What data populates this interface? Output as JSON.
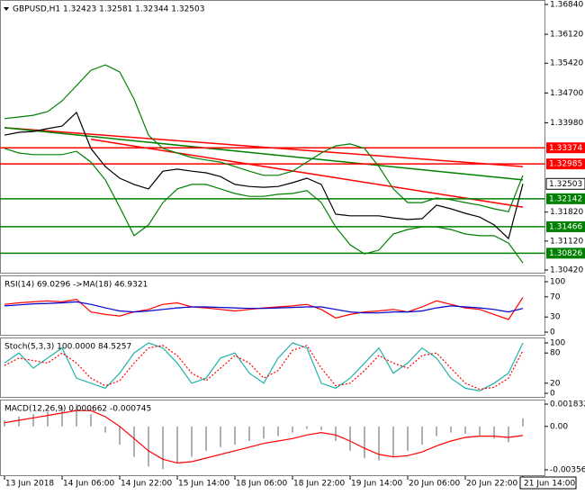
{
  "chart_data": [
    {
      "type": "line",
      "title": "GBPUSD,H1  1.32423 1.32581 1.32344 1.32503",
      "categories": [
        "13 Jun 2018",
        null,
        null,
        null,
        "14 Jun 06:00",
        null,
        null,
        null,
        "14 Jun 22:00",
        null,
        null,
        null,
        "15 Jun 14:00",
        null,
        null,
        null,
        "18 Jun 06:00",
        null,
        null,
        null,
        "18 Jun 22:00",
        null,
        null,
        null,
        "19 Jun 14:00",
        null,
        null,
        null,
        "20 Jun 06:00",
        null,
        null,
        null,
        "20 Jun 22:00",
        null,
        null,
        null,
        "21 Jun 14:00"
      ],
      "ylim": [
        1.3042,
        1.3684
      ],
      "yticks": [
        {
          "value": 1.3684,
          "label": "1.36840"
        },
        {
          "value": 1.3612,
          "label": "1.36120"
        },
        {
          "value": 1.3542,
          "label": "1.35420"
        },
        {
          "value": 1.347,
          "label": "1.34700"
        },
        {
          "value": 1.3398,
          "label": "1.33980"
        },
        {
          "value": 1.3182,
          "label": "1.31820"
        },
        {
          "value": 1.3112,
          "label": "1.31120"
        },
        {
          "value": 1.3042,
          "label": "1.30420"
        }
      ],
      "series": [
        {
          "color": "#008000",
          "values": [
            1.3408,
            1.3412,
            1.3416,
            1.3425,
            1.3451,
            1.3488,
            1.3525,
            1.3538,
            1.3521,
            1.3455,
            1.3368,
            1.3336,
            1.3325,
            1.3314,
            1.3308,
            1.3303,
            1.3292,
            1.3281,
            1.3271,
            1.3271,
            1.3281,
            1.3303,
            1.3325,
            1.3342,
            1.3347,
            1.3336,
            1.3292,
            1.3238,
            1.3205,
            1.3205,
            1.3216,
            1.3212,
            1.3205,
            1.3199,
            1.319,
            1.3183,
            1.3271
          ]
        },
        {
          "color": "#008000",
          "values": [
            1.3336,
            1.3325,
            1.3321,
            1.3321,
            1.3321,
            1.3329,
            1.3303,
            1.326,
            1.3194,
            1.3125,
            1.3151,
            1.3205,
            1.3238,
            1.3249,
            1.3249,
            1.3238,
            1.3227,
            1.322,
            1.322,
            1.3225,
            1.3227,
            1.3234,
            1.3205,
            1.3146,
            1.3103,
            1.3081,
            1.309,
            1.3129,
            1.314,
            1.3146,
            1.3146,
            1.314,
            1.3129,
            1.3125,
            1.3125,
            1.3107,
            1.3059
          ]
        },
        {
          "color": "#000000",
          "values": [
            1.3368,
            1.3375,
            1.3377,
            1.3384,
            1.339,
            1.3423,
            1.3336,
            1.3292,
            1.3264,
            1.3249,
            1.3238,
            1.3281,
            1.3286,
            1.3281,
            1.3277,
            1.3268,
            1.3249,
            1.3244,
            1.3242,
            1.3244,
            1.3253,
            1.3264,
            1.3249,
            1.3177,
            1.3173,
            1.3173,
            1.3173,
            1.3168,
            1.3164,
            1.3166,
            1.3199,
            1.319,
            1.3179,
            1.317,
            1.3151,
            1.3118,
            1.32503
          ]
        }
      ],
      "trendlines": [
        {
          "color": "#ff0000",
          "x": [
            0,
            36
          ],
          "values": [
            1.3386,
            1.3292
          ]
        },
        {
          "color": "#ff0000",
          "x": [
            6,
            36
          ],
          "values": [
            1.3358,
            1.3194
          ]
        },
        {
          "color": "#008000",
          "x": [
            0,
            36
          ],
          "values": [
            1.3386,
            1.326
          ]
        }
      ],
      "levels": [
        {
          "value": 1.33374,
          "color": "#ff0000"
        },
        {
          "value": 1.32985,
          "color": "#ff0000"
        },
        {
          "value": 1.32142,
          "color": "#008000"
        },
        {
          "value": 1.31466,
          "color": "#008000"
        },
        {
          "value": 1.30826,
          "color": "#008000"
        }
      ],
      "last_price": 1.32503
    },
    {
      "type": "line",
      "title": "RSI(14) 69.0296 ->MA(18) 46.9321",
      "ylim": [
        0,
        100
      ],
      "yticks": [
        100,
        70,
        30,
        0
      ],
      "series": [
        {
          "color": "#ff0000",
          "values": [
            55,
            58,
            60,
            62,
            60,
            65,
            40,
            35,
            32,
            40,
            45,
            55,
            58,
            50,
            48,
            45,
            42,
            45,
            48,
            50,
            52,
            55,
            45,
            28,
            35,
            40,
            42,
            45,
            40,
            50,
            62,
            55,
            48,
            45,
            35,
            25,
            69
          ]
        },
        {
          "color": "#0000cd",
          "values": [
            52,
            54,
            56,
            57,
            58,
            60,
            55,
            48,
            42,
            40,
            42,
            45,
            48,
            50,
            50,
            49,
            48,
            47,
            47,
            48,
            49,
            50,
            50,
            45,
            40,
            38,
            38,
            40,
            40,
            42,
            48,
            52,
            50,
            48,
            45,
            40,
            47
          ]
        }
      ]
    },
    {
      "type": "line",
      "title": "Stoch(5,3,3) 100.0000 84.5257",
      "ylim": [
        0,
        100
      ],
      "yticks": [
        100,
        80,
        20,
        0
      ],
      "series": [
        {
          "color": "#20b2aa",
          "values": [
            60,
            80,
            50,
            70,
            90,
            30,
            20,
            10,
            40,
            80,
            100,
            90,
            60,
            20,
            30,
            70,
            80,
            40,
            20,
            70,
            100,
            90,
            20,
            10,
            30,
            60,
            90,
            40,
            60,
            90,
            70,
            30,
            10,
            5,
            20,
            40,
            100
          ]
        },
        {
          "color": "#ff0000",
          "style": "dotted",
          "values": [
            55,
            70,
            65,
            60,
            80,
            60,
            30,
            15,
            25,
            60,
            90,
            95,
            75,
            40,
            25,
            50,
            75,
            60,
            30,
            45,
            85,
            95,
            50,
            15,
            20,
            45,
            75,
            60,
            50,
            75,
            80,
            50,
            20,
            8,
            12,
            30,
            85
          ]
        }
      ]
    },
    {
      "type": "bar",
      "title": "MACD(12,26,9) 0.000662 -0.000745",
      "ylim": [
        -0.003563,
        0.001832
      ],
      "yticks": [
        0.001832,
        {
          "value": 0,
          "label": "0.00"
        },
        -0.003563
      ],
      "series": [
        {
          "color": "#b0b0b0",
          "kind": "bar",
          "values": [
            0.0005,
            0.0008,
            0.001,
            0.0012,
            0.0015,
            0.0018,
            0.001,
            -0.0005,
            -0.0015,
            -0.0025,
            -0.0033,
            -0.0035,
            -0.003,
            -0.0025,
            -0.002,
            -0.0017,
            -0.0015,
            -0.0012,
            -0.001,
            -0.0008,
            -0.0005,
            -0.0002,
            -0.0003,
            -0.0012,
            -0.002,
            -0.0026,
            -0.0028,
            -0.0025,
            -0.002,
            -0.0015,
            -0.0008,
            -0.0005,
            -0.0006,
            -0.0008,
            -0.001,
            -0.0013,
            0.000662
          ]
        },
        {
          "color": "#ff0000",
          "kind": "line",
          "values": [
            0.0003,
            0.0005,
            0.0007,
            0.0009,
            0.0011,
            0.0013,
            0.0013,
            0.0008,
            0,
            -0.001,
            -0.002,
            -0.0027,
            -0.003,
            -0.0029,
            -0.0026,
            -0.0023,
            -0.002,
            -0.0017,
            -0.0014,
            -0.0012,
            -0.001,
            -0.0007,
            -0.0005,
            -0.0007,
            -0.0012,
            -0.0018,
            -0.0023,
            -0.0025,
            -0.0024,
            -0.0021,
            -0.0016,
            -0.0012,
            -0.0009,
            -0.0008,
            -0.0008,
            -0.0009,
            -0.000745
          ]
        }
      ]
    }
  ]
}
